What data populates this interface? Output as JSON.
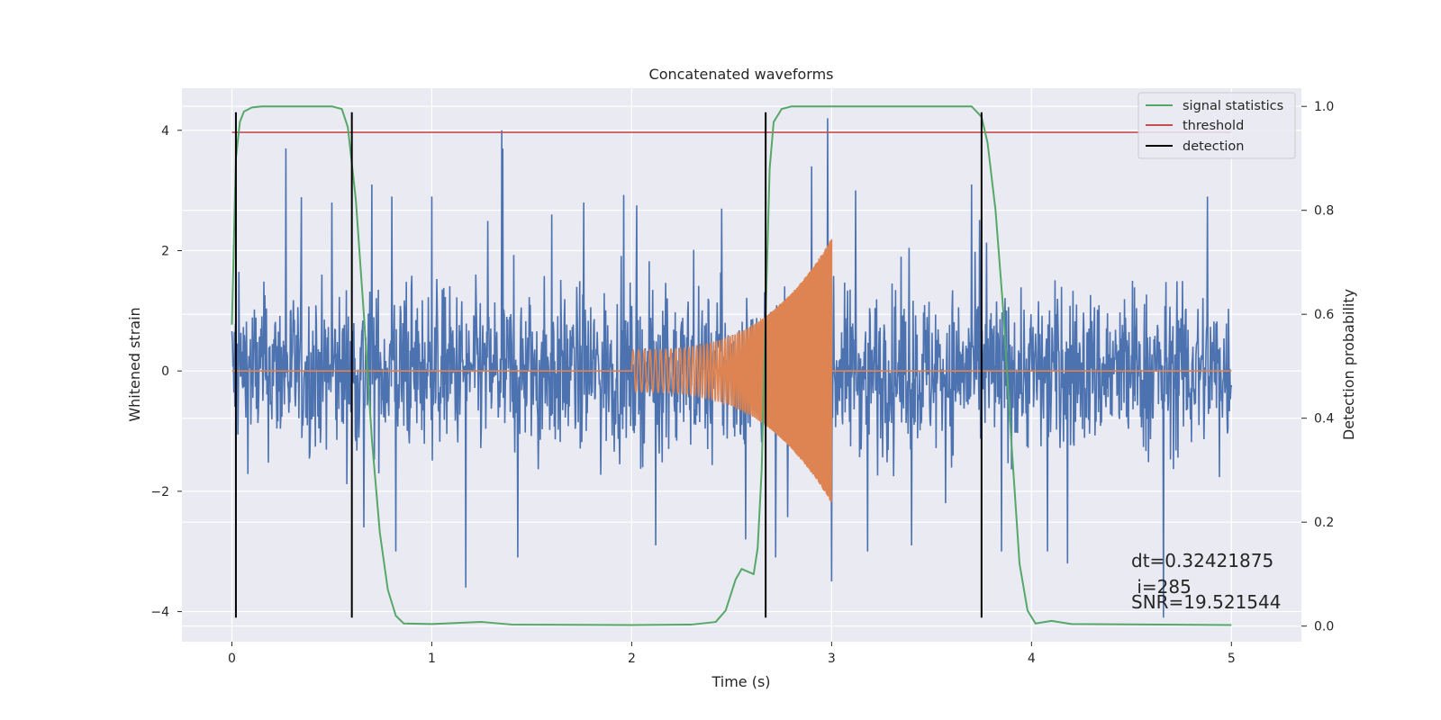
{
  "chart_data": {
    "type": "line",
    "title": "Concatenated waveforms",
    "xlabel": "Time (s)",
    "ylabel": "Whitened strain",
    "y2label": "Detection probability",
    "xlim": [
      -0.25,
      5.35
    ],
    "ylim": [
      -4.5,
      4.7
    ],
    "y2lim": [
      -0.03,
      1.035
    ],
    "xticks": [
      0,
      1,
      2,
      3,
      4,
      5
    ],
    "yticks": [
      -4,
      -2,
      0,
      2,
      4
    ],
    "y2ticks": [
      0.0,
      0.2,
      0.4,
      0.6,
      0.8,
      1.0
    ],
    "xtick_labels": [
      "0",
      "1",
      "2",
      "3",
      "4",
      "5"
    ],
    "ytick_labels": [
      "−4",
      "−2",
      "0",
      "2",
      "4"
    ],
    "y2tick_labels": [
      "0.0",
      "0.2",
      "0.4",
      "0.6",
      "0.8",
      "1.0"
    ],
    "grid": true,
    "legend_position": "top-right",
    "colors": {
      "strain": "#4c72b0",
      "waveform": "#dd8452",
      "signal_statistics": "#55a868",
      "threshold": "#c44e52",
      "detection": "#000000",
      "background": "#eaeaf2",
      "grid": "#ffffff"
    },
    "legend": [
      {
        "label": "signal statistics",
        "color": "#55a868"
      },
      {
        "label": "threshold",
        "color": "#c44e52"
      },
      {
        "label": "detection",
        "color": "#000000"
      }
    ],
    "strain_noise": {
      "x_range": [
        0,
        5
      ],
      "typical_amplitude": 1.2,
      "spikes": [
        [
          0.27,
          3.7
        ],
        [
          0.5,
          2.8
        ],
        [
          0.66,
          -2.6
        ],
        [
          0.7,
          3.1
        ],
        [
          0.8,
          2.9
        ],
        [
          0.82,
          -3.0
        ],
        [
          1.0,
          2.9
        ],
        [
          1.17,
          -3.6
        ],
        [
          1.35,
          4.0
        ],
        [
          1.43,
          -3.1
        ],
        [
          1.6,
          2.6
        ],
        [
          1.76,
          2.8
        ],
        [
          2.12,
          -2.9
        ],
        [
          2.45,
          2.7
        ],
        [
          2.57,
          -2.8
        ],
        [
          2.72,
          -3.1
        ],
        [
          2.9,
          3.4
        ],
        [
          2.98,
          4.2
        ],
        [
          3.0,
          -3.5
        ],
        [
          3.12,
          3.0
        ],
        [
          3.18,
          -3.0
        ],
        [
          3.4,
          -2.9
        ],
        [
          3.7,
          3.1
        ],
        [
          3.85,
          -3.0
        ],
        [
          4.08,
          -3.0
        ],
        [
          4.18,
          -3.2
        ],
        [
          4.66,
          -4.1
        ],
        [
          4.88,
          2.9
        ]
      ]
    },
    "waveform_chirp": {
      "x_range": [
        2.0,
        3.0
      ],
      "amplitude_start": 0.35,
      "amplitude_end": 2.2,
      "freq_start": 35,
      "freq_end": 250
    },
    "signal_statistics": {
      "x": [
        0,
        0.02,
        0.04,
        0.06,
        0.1,
        0.15,
        0.5,
        0.55,
        0.58,
        0.62,
        0.66,
        0.7,
        0.74,
        0.78,
        0.82,
        0.86,
        1.0,
        1.25,
        1.4,
        2.0,
        2.3,
        2.42,
        2.47,
        2.52,
        2.55,
        2.58,
        2.61,
        2.63,
        2.65,
        2.67,
        2.69,
        2.71,
        2.75,
        2.8,
        3.7,
        3.75,
        3.78,
        3.82,
        3.86,
        3.9,
        3.94,
        3.98,
        4.02,
        4.1,
        4.2,
        5.0
      ],
      "values": [
        0.58,
        0.9,
        0.97,
        0.99,
        0.998,
        1.0,
        1.0,
        0.995,
        0.96,
        0.82,
        0.6,
        0.36,
        0.18,
        0.07,
        0.02,
        0.005,
        0.004,
        0.008,
        0.003,
        0.002,
        0.003,
        0.008,
        0.03,
        0.09,
        0.11,
        0.105,
        0.1,
        0.15,
        0.3,
        0.6,
        0.88,
        0.97,
        0.995,
        1.0,
        1.0,
        0.98,
        0.93,
        0.8,
        0.6,
        0.35,
        0.12,
        0.03,
        0.005,
        0.01,
        0.004,
        0.002
      ]
    },
    "threshold": {
      "x": [
        0,
        5
      ],
      "value": 0.95
    },
    "detections": [
      0.02,
      0.6,
      2.67,
      3.75
    ],
    "detection_range": [
      -4.1,
      4.3
    ],
    "annotations": [
      "dt=0.32421875",
      " i=285",
      "SNR=19.521544"
    ]
  }
}
